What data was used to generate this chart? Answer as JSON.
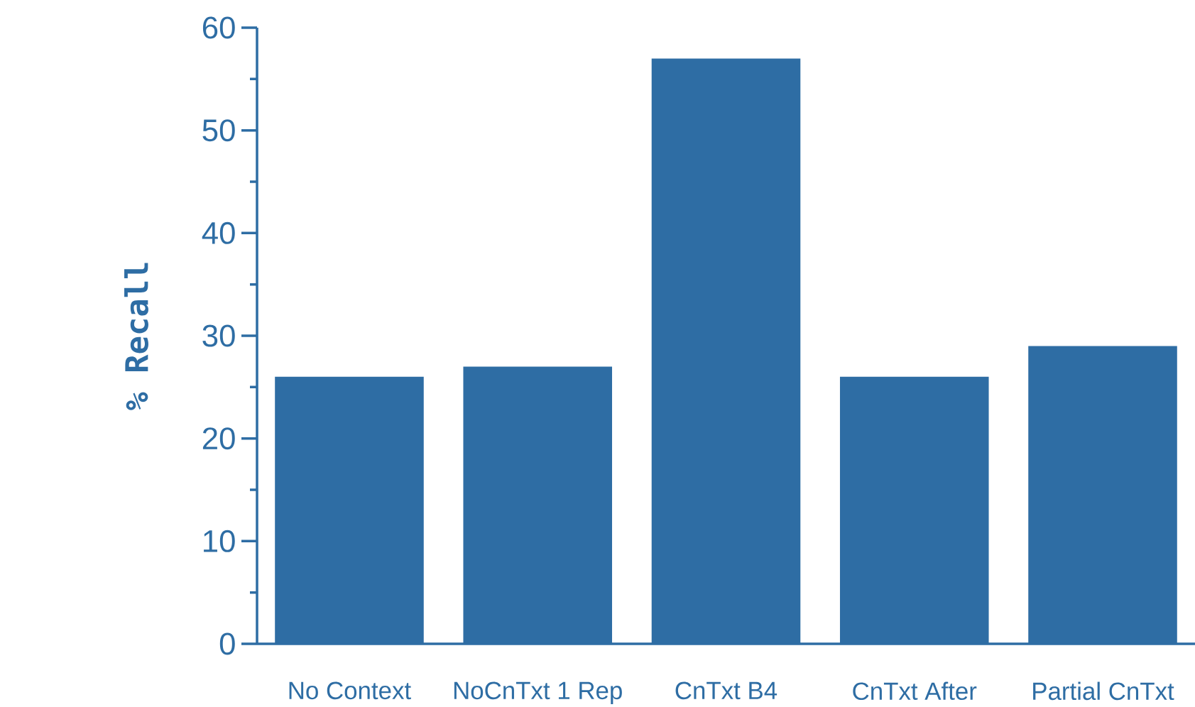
{
  "chart_data": {
    "type": "bar",
    "ylabel": "% Recall",
    "categories": [
      "No Context",
      "NoCnTxt 1 Rep",
      "CnTxt B4",
      "CnTxt After",
      "Partial CnTxt"
    ],
    "values": [
      26,
      27,
      57,
      26,
      29
    ],
    "color": "#2e6da4",
    "ylim": [
      0,
      60
    ],
    "yticks": [
      0,
      10,
      20,
      30,
      40,
      50,
      60
    ],
    "grid": false
  }
}
